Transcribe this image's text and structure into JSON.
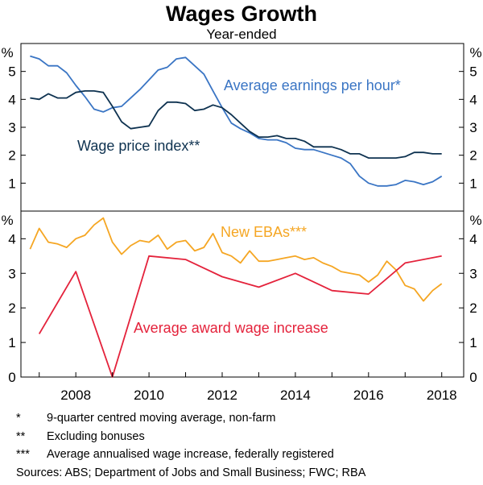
{
  "chart_data": {
    "type": "line",
    "title": "Wages Growth",
    "subtitle": "Year-ended",
    "x_ticks": [
      "2008",
      "2010",
      "2012",
      "2014",
      "2016",
      "2018"
    ],
    "x_tick_values": [
      2008,
      2010,
      2012,
      2014,
      2016,
      2018
    ],
    "xlim": [
      2006.5,
      2018.6
    ],
    "panels": [
      {
        "unit": "%",
        "ylim": [
          0,
          6
        ],
        "y_ticks": [
          "1",
          "2",
          "3",
          "4",
          "5"
        ],
        "y_tick_values": [
          1,
          2,
          3,
          4,
          5
        ],
        "series": [
          {
            "name": "Average earnings per hour*",
            "color": "#3a75c4",
            "x": [
              2006.75,
              2007.0,
              2007.25,
              2007.5,
              2007.75,
              2008.0,
              2008.25,
              2008.5,
              2008.75,
              2009.0,
              2009.25,
              2009.5,
              2009.75,
              2010.0,
              2010.25,
              2010.5,
              2010.75,
              2011.0,
              2011.25,
              2011.5,
              2011.75,
              2012.0,
              2012.25,
              2012.5,
              2012.75,
              2013.0,
              2013.25,
              2013.5,
              2013.75,
              2014.0,
              2014.25,
              2014.5,
              2014.75,
              2015.0,
              2015.25,
              2015.5,
              2015.75,
              2016.0,
              2016.25,
              2016.5,
              2016.75,
              2017.0,
              2017.25,
              2017.5,
              2017.75,
              2018.0
            ],
            "values": [
              5.55,
              5.45,
              5.2,
              5.2,
              4.95,
              4.5,
              4.1,
              3.65,
              3.55,
              3.7,
              3.75,
              4.05,
              4.35,
              4.7,
              5.05,
              5.15,
              5.45,
              5.5,
              5.2,
              4.9,
              4.3,
              3.7,
              3.15,
              2.95,
              2.8,
              2.6,
              2.55,
              2.55,
              2.45,
              2.25,
              2.2,
              2.2,
              2.1,
              2.0,
              1.9,
              1.7,
              1.25,
              1.0,
              0.9,
              0.9,
              0.95,
              1.1,
              1.05,
              0.95,
              1.05,
              1.25
            ]
          },
          {
            "name": "Wage price index**",
            "color": "#0e3250",
            "x": [
              2006.75,
              2007.0,
              2007.25,
              2007.5,
              2007.75,
              2008.0,
              2008.25,
              2008.5,
              2008.75,
              2009.0,
              2009.25,
              2009.5,
              2009.75,
              2010.0,
              2010.25,
              2010.5,
              2010.75,
              2011.0,
              2011.25,
              2011.5,
              2011.75,
              2012.0,
              2012.25,
              2012.5,
              2012.75,
              2013.0,
              2013.25,
              2013.5,
              2013.75,
              2014.0,
              2014.25,
              2014.5,
              2014.75,
              2015.0,
              2015.25,
              2015.5,
              2015.75,
              2016.0,
              2016.25,
              2016.5,
              2016.75,
              2017.0,
              2017.25,
              2017.5,
              2017.75,
              2018.0
            ],
            "values": [
              4.05,
              4.0,
              4.2,
              4.05,
              4.05,
              4.25,
              4.3,
              4.3,
              4.25,
              3.75,
              3.2,
              2.95,
              3.0,
              3.05,
              3.6,
              3.9,
              3.9,
              3.85,
              3.6,
              3.65,
              3.8,
              3.7,
              3.45,
              3.15,
              2.85,
              2.65,
              2.65,
              2.7,
              2.6,
              2.6,
              2.5,
              2.3,
              2.3,
              2.3,
              2.2,
              2.05,
              2.05,
              1.9,
              1.9,
              1.9,
              1.9,
              1.95,
              2.1,
              2.1,
              2.05,
              2.05
            ]
          }
        ]
      },
      {
        "unit": "%",
        "ylim": [
          0,
          4.8
        ],
        "y_ticks": [
          "0",
          "1",
          "2",
          "3",
          "4"
        ],
        "y_tick_values": [
          0,
          1,
          2,
          3,
          4
        ],
        "series": [
          {
            "name": "New EBAs***",
            "color": "#f5a623",
            "x": [
              2006.75,
              2007.0,
              2007.25,
              2007.5,
              2007.75,
              2008.0,
              2008.25,
              2008.5,
              2008.75,
              2009.0,
              2009.25,
              2009.5,
              2009.75,
              2010.0,
              2010.25,
              2010.5,
              2010.75,
              2011.0,
              2011.25,
              2011.5,
              2011.75,
              2012.0,
              2012.25,
              2012.5,
              2012.75,
              2013.0,
              2013.25,
              2013.5,
              2013.75,
              2014.0,
              2014.25,
              2014.5,
              2014.75,
              2015.0,
              2015.25,
              2015.5,
              2015.75,
              2016.0,
              2016.25,
              2016.5,
              2016.75,
              2017.0,
              2017.25,
              2017.5,
              2017.75,
              2018.0
            ],
            "values": [
              3.7,
              4.3,
              3.9,
              3.85,
              3.75,
              4.0,
              4.1,
              4.4,
              4.6,
              3.9,
              3.55,
              3.8,
              3.95,
              3.9,
              4.1,
              3.7,
              3.9,
              3.95,
              3.65,
              3.75,
              4.15,
              3.6,
              3.5,
              3.3,
              3.65,
              3.35,
              3.35,
              3.4,
              3.45,
              3.5,
              3.4,
              3.45,
              3.3,
              3.2,
              3.05,
              3.0,
              2.95,
              2.75,
              2.95,
              3.35,
              3.1,
              2.65,
              2.55,
              2.2,
              2.5,
              2.7
            ]
          },
          {
            "name": "Average award wage increase",
            "color": "#e4223b",
            "x": [
              2007.0,
              2008.0,
              2009.0,
              2010.0,
              2011.0,
              2012.0,
              2013.0,
              2014.0,
              2015.0,
              2016.0,
              2017.0,
              2018.0
            ],
            "values": [
              1.25,
              3.05,
              0.0,
              3.5,
              3.4,
              2.9,
              2.6,
              3.0,
              2.5,
              2.4,
              3.3,
              3.5
            ]
          }
        ]
      }
    ]
  },
  "footnotes": [
    {
      "mark": "*",
      "text": "9-quarter centred moving average, non-farm"
    },
    {
      "mark": "**",
      "text": "Excluding bonuses"
    },
    {
      "mark": "***",
      "text": "Average annualised wage increase, federally registered"
    }
  ],
  "sources": "Sources: ABS; Department of Jobs and Small Business; FWC; RBA"
}
